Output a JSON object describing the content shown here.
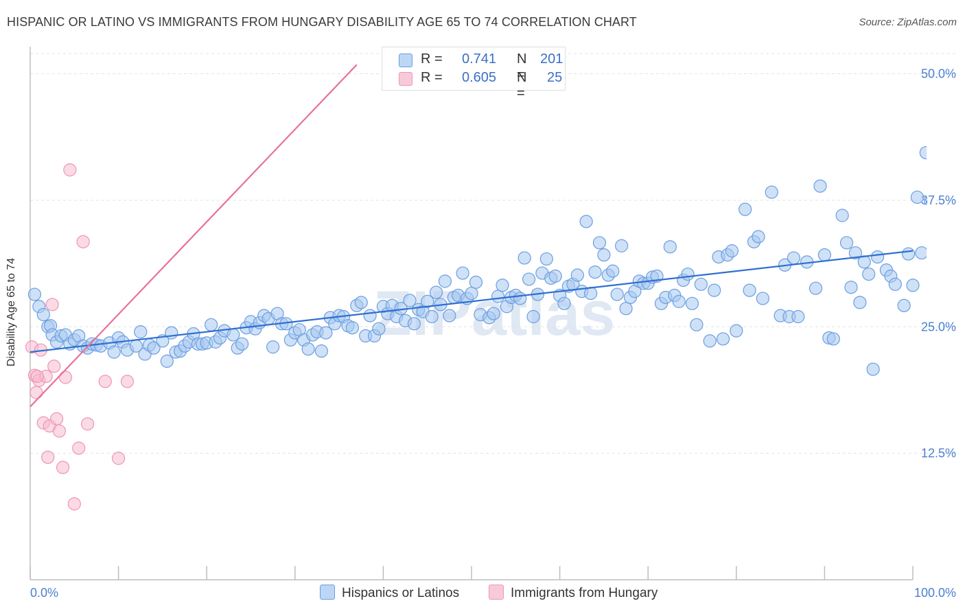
{
  "title": "HISPANIC OR LATINO VS IMMIGRANTS FROM HUNGARY DISABILITY AGE 65 TO 74 CORRELATION CHART",
  "source": "Source: ZipAtlas.com",
  "watermark": "ZIPatlas",
  "legend_top": [
    {
      "r_label": "R =",
      "r_value": "0.741",
      "n_label": "N =",
      "n_value": "201",
      "color": "#a8c8f0"
    },
    {
      "r_label": "R =",
      "r_value": "0.605",
      "n_label": "N =",
      "n_value": "25",
      "color": "#f6bcd0"
    }
  ],
  "chart_data": {
    "type": "scatter",
    "title": "HISPANIC OR LATINO VS IMMIGRANTS FROM HUNGARY DISABILITY AGE 65 TO 74 CORRELATION CHART",
    "xlabel": "",
    "ylabel": "Disability Age 65 to 74",
    "xlim": [
      0,
      100
    ],
    "ylim": [
      0,
      52
    ],
    "x_tick_labels": [
      "0.0%",
      "100.0%"
    ],
    "y_ticks": [
      12.5,
      25.0,
      37.5,
      50.0
    ],
    "y_tick_labels": [
      "12.5%",
      "25.0%",
      "37.5%",
      "50.0%"
    ],
    "grid": true,
    "legend_position": "bottom",
    "series": [
      {
        "name": "Hispanics or Latinos",
        "color": "#6a9ee0",
        "fill": "#a8c8f0",
        "trend": {
          "x": [
            0,
            100
          ],
          "y": [
            22.5,
            32.5
          ],
          "color": "#2f6fd0"
        },
        "points": [
          [
            0.5,
            28.2
          ],
          [
            1,
            27
          ],
          [
            1.5,
            26.2
          ],
          [
            2,
            25
          ],
          [
            2.3,
            25.1
          ],
          [
            2.5,
            24.2
          ],
          [
            3,
            23.5
          ],
          [
            3.5,
            24.1
          ],
          [
            4,
            24.2
          ],
          [
            4.5,
            23.3
          ],
          [
            5,
            23.7
          ],
          [
            5.5,
            24.1
          ],
          [
            6,
            23.1
          ],
          [
            6.5,
            22.9
          ],
          [
            7,
            23.3
          ],
          [
            7.5,
            23.2
          ],
          [
            8,
            23.1
          ],
          [
            9,
            23.4
          ],
          [
            9.5,
            22.5
          ],
          [
            10,
            23.9
          ],
          [
            10.5,
            23.5
          ],
          [
            11,
            22.7
          ],
          [
            12,
            23.1
          ],
          [
            12.5,
            24.5
          ],
          [
            13,
            22.3
          ],
          [
            13.5,
            23.2
          ],
          [
            14,
            22.9
          ],
          [
            15,
            23.6
          ],
          [
            15.5,
            21.6
          ],
          [
            16,
            24.4
          ],
          [
            16.5,
            22.5
          ],
          [
            17,
            22.6
          ],
          [
            17.5,
            23.1
          ],
          [
            18,
            23.5
          ],
          [
            18.5,
            24.3
          ],
          [
            19,
            23.3
          ],
          [
            19.5,
            23.3
          ],
          [
            20,
            23.4
          ],
          [
            20.5,
            25.2
          ],
          [
            21,
            23.5
          ],
          [
            21.5,
            23.9
          ],
          [
            22,
            24.6
          ],
          [
            23,
            24.2
          ],
          [
            23.5,
            22.9
          ],
          [
            24,
            23.3
          ],
          [
            24.5,
            24.9
          ],
          [
            25,
            25.5
          ],
          [
            25.5,
            24.8
          ],
          [
            26,
            25.4
          ],
          [
            26.5,
            26.1
          ],
          [
            27,
            25.8
          ],
          [
            27.5,
            23
          ],
          [
            28,
            26.3
          ],
          [
            28.5,
            25.3
          ],
          [
            29,
            25.3
          ],
          [
            29.5,
            23.7
          ],
          [
            30,
            24.4
          ],
          [
            30.5,
            24.7
          ],
          [
            31,
            23.7
          ],
          [
            31.5,
            22.8
          ],
          [
            32,
            24.2
          ],
          [
            32.5,
            24.5
          ],
          [
            33,
            22.6
          ],
          [
            33.5,
            24.4
          ],
          [
            34,
            25.9
          ],
          [
            34.5,
            25.3
          ],
          [
            35,
            26.1
          ],
          [
            35.5,
            26
          ],
          [
            36,
            25.1
          ],
          [
            36.5,
            24.9
          ],
          [
            37,
            27.1
          ],
          [
            37.5,
            27.4
          ],
          [
            38,
            24.1
          ],
          [
            38.5,
            26.1
          ],
          [
            39,
            24.1
          ],
          [
            39.5,
            24.8
          ],
          [
            40,
            27
          ],
          [
            40.5,
            26.3
          ],
          [
            41,
            27.1
          ],
          [
            41.5,
            26
          ],
          [
            42,
            26.8
          ],
          [
            42.5,
            25.6
          ],
          [
            43,
            27.6
          ],
          [
            43.5,
            25.3
          ],
          [
            44,
            26.7
          ],
          [
            44.5,
            26.5
          ],
          [
            45,
            27.5
          ],
          [
            45.5,
            26
          ],
          [
            46,
            28.4
          ],
          [
            46.5,
            27.2
          ],
          [
            47,
            29.5
          ],
          [
            47.5,
            26.1
          ],
          [
            48,
            27.9
          ],
          [
            48.5,
            28.1
          ],
          [
            49,
            30.3
          ],
          [
            49.5,
            27.8
          ],
          [
            50,
            28.3
          ],
          [
            50.5,
            29.4
          ],
          [
            51,
            26.2
          ],
          [
            52,
            25.9
          ],
          [
            52.5,
            26.3
          ],
          [
            53,
            28
          ],
          [
            53.5,
            29.1
          ],
          [
            54,
            27
          ],
          [
            54.5,
            27.9
          ],
          [
            55,
            28.1
          ],
          [
            55.5,
            27.8
          ],
          [
            56,
            31.8
          ],
          [
            56.5,
            29.7
          ],
          [
            57,
            26
          ],
          [
            57.5,
            28.2
          ],
          [
            58,
            30.3
          ],
          [
            58.5,
            31.7
          ],
          [
            59,
            29.8
          ],
          [
            59.5,
            30
          ],
          [
            60,
            28.1
          ],
          [
            60.5,
            27.3
          ],
          [
            61,
            29
          ],
          [
            61.5,
            29.2
          ],
          [
            62,
            30.1
          ],
          [
            62.5,
            28.5
          ],
          [
            63,
            35.4
          ],
          [
            63.5,
            28.3
          ],
          [
            64,
            30.4
          ],
          [
            64.5,
            33.3
          ],
          [
            65,
            32.1
          ],
          [
            65.5,
            30.1
          ],
          [
            66,
            30.5
          ],
          [
            66.5,
            28.2
          ],
          [
            67,
            33
          ],
          [
            67.5,
            26.8
          ],
          [
            68,
            27.9
          ],
          [
            68.5,
            28.5
          ],
          [
            69,
            29.5
          ],
          [
            69.5,
            29.3
          ],
          [
            70,
            29.3
          ],
          [
            70.5,
            29.9
          ],
          [
            71,
            30
          ],
          [
            71.5,
            27.3
          ],
          [
            72,
            27.9
          ],
          [
            72.5,
            32.9
          ],
          [
            73,
            28.1
          ],
          [
            73.5,
            27.5
          ],
          [
            74,
            29.6
          ],
          [
            74.5,
            30.2
          ],
          [
            75,
            27.3
          ],
          [
            75.5,
            25.2
          ],
          [
            76,
            29.2
          ],
          [
            77,
            23.6
          ],
          [
            77.5,
            28.6
          ],
          [
            78,
            31.9
          ],
          [
            78.5,
            23.8
          ],
          [
            79,
            32.1
          ],
          [
            79.5,
            32.5
          ],
          [
            80,
            24.6
          ],
          [
            81,
            36.6
          ],
          [
            81.5,
            28.6
          ],
          [
            82,
            33.4
          ],
          [
            82.5,
            33.9
          ],
          [
            83,
            27.8
          ],
          [
            84,
            38.3
          ],
          [
            85,
            26.1
          ],
          [
            85.5,
            31.1
          ],
          [
            86,
            26
          ],
          [
            86.5,
            31.8
          ],
          [
            87,
            26
          ],
          [
            88,
            31.4
          ],
          [
            89,
            28.8
          ],
          [
            89.5,
            38.9
          ],
          [
            90,
            32.1
          ],
          [
            90.5,
            23.9
          ],
          [
            91,
            23.8
          ],
          [
            92,
            36
          ],
          [
            92.5,
            33.3
          ],
          [
            93,
            28.9
          ],
          [
            93.5,
            32.3
          ],
          [
            94,
            27.4
          ],
          [
            94.5,
            31.4
          ],
          [
            95,
            30.2
          ],
          [
            95.5,
            20.8
          ],
          [
            96,
            31.9
          ],
          [
            97,
            30.6
          ],
          [
            97.5,
            30
          ],
          [
            98,
            29.2
          ],
          [
            99,
            27.1
          ],
          [
            99.5,
            32.2
          ],
          [
            100,
            29.1
          ],
          [
            100.5,
            37.8
          ],
          [
            101,
            32.3
          ],
          [
            101.5,
            42.2
          ],
          [
            102,
            37.5
          ],
          [
            102.5,
            37.9
          ],
          [
            103,
            35.6
          ],
          [
            103.5,
            36.6
          ],
          [
            104,
            33.6
          ],
          [
            104.5,
            37.4
          ],
          [
            105,
            42.5
          ]
        ]
      },
      {
        "name": "Immigrants from Hungary",
        "color": "#f094b4",
        "fill": "#f6bcd0",
        "trend": {
          "x": [
            0,
            37
          ],
          "y": [
            17.1,
            50.9
          ],
          "color": "#e8709a"
        },
        "points": [
          [
            0.2,
            23
          ],
          [
            0.5,
            20.2
          ],
          [
            0.7,
            18.5
          ],
          [
            1,
            19.7
          ],
          [
            1.2,
            22.7
          ],
          [
            1.5,
            15.5
          ],
          [
            1.8,
            20.1
          ],
          [
            2,
            12.1
          ],
          [
            2.2,
            15.2
          ],
          [
            2.5,
            27.2
          ],
          [
            2.7,
            21.1
          ],
          [
            3,
            15.9
          ],
          [
            3.3,
            14.7
          ],
          [
            3.7,
            11.1
          ],
          [
            4,
            20
          ],
          [
            4.5,
            40.5
          ],
          [
            5,
            7.5
          ],
          [
            5.5,
            13
          ],
          [
            6,
            33.4
          ],
          [
            6.5,
            15.4
          ],
          [
            8.5,
            19.6
          ],
          [
            10,
            12
          ],
          [
            11,
            19.6
          ],
          [
            43.5,
            50.1
          ],
          [
            0.8,
            20.1
          ]
        ]
      }
    ]
  },
  "legend_bottom": [
    {
      "label": "Hispanics or Latinos",
      "color": "#a8c8f0"
    },
    {
      "label": "Immigrants from Hungary",
      "color": "#f6bcd0"
    }
  ]
}
